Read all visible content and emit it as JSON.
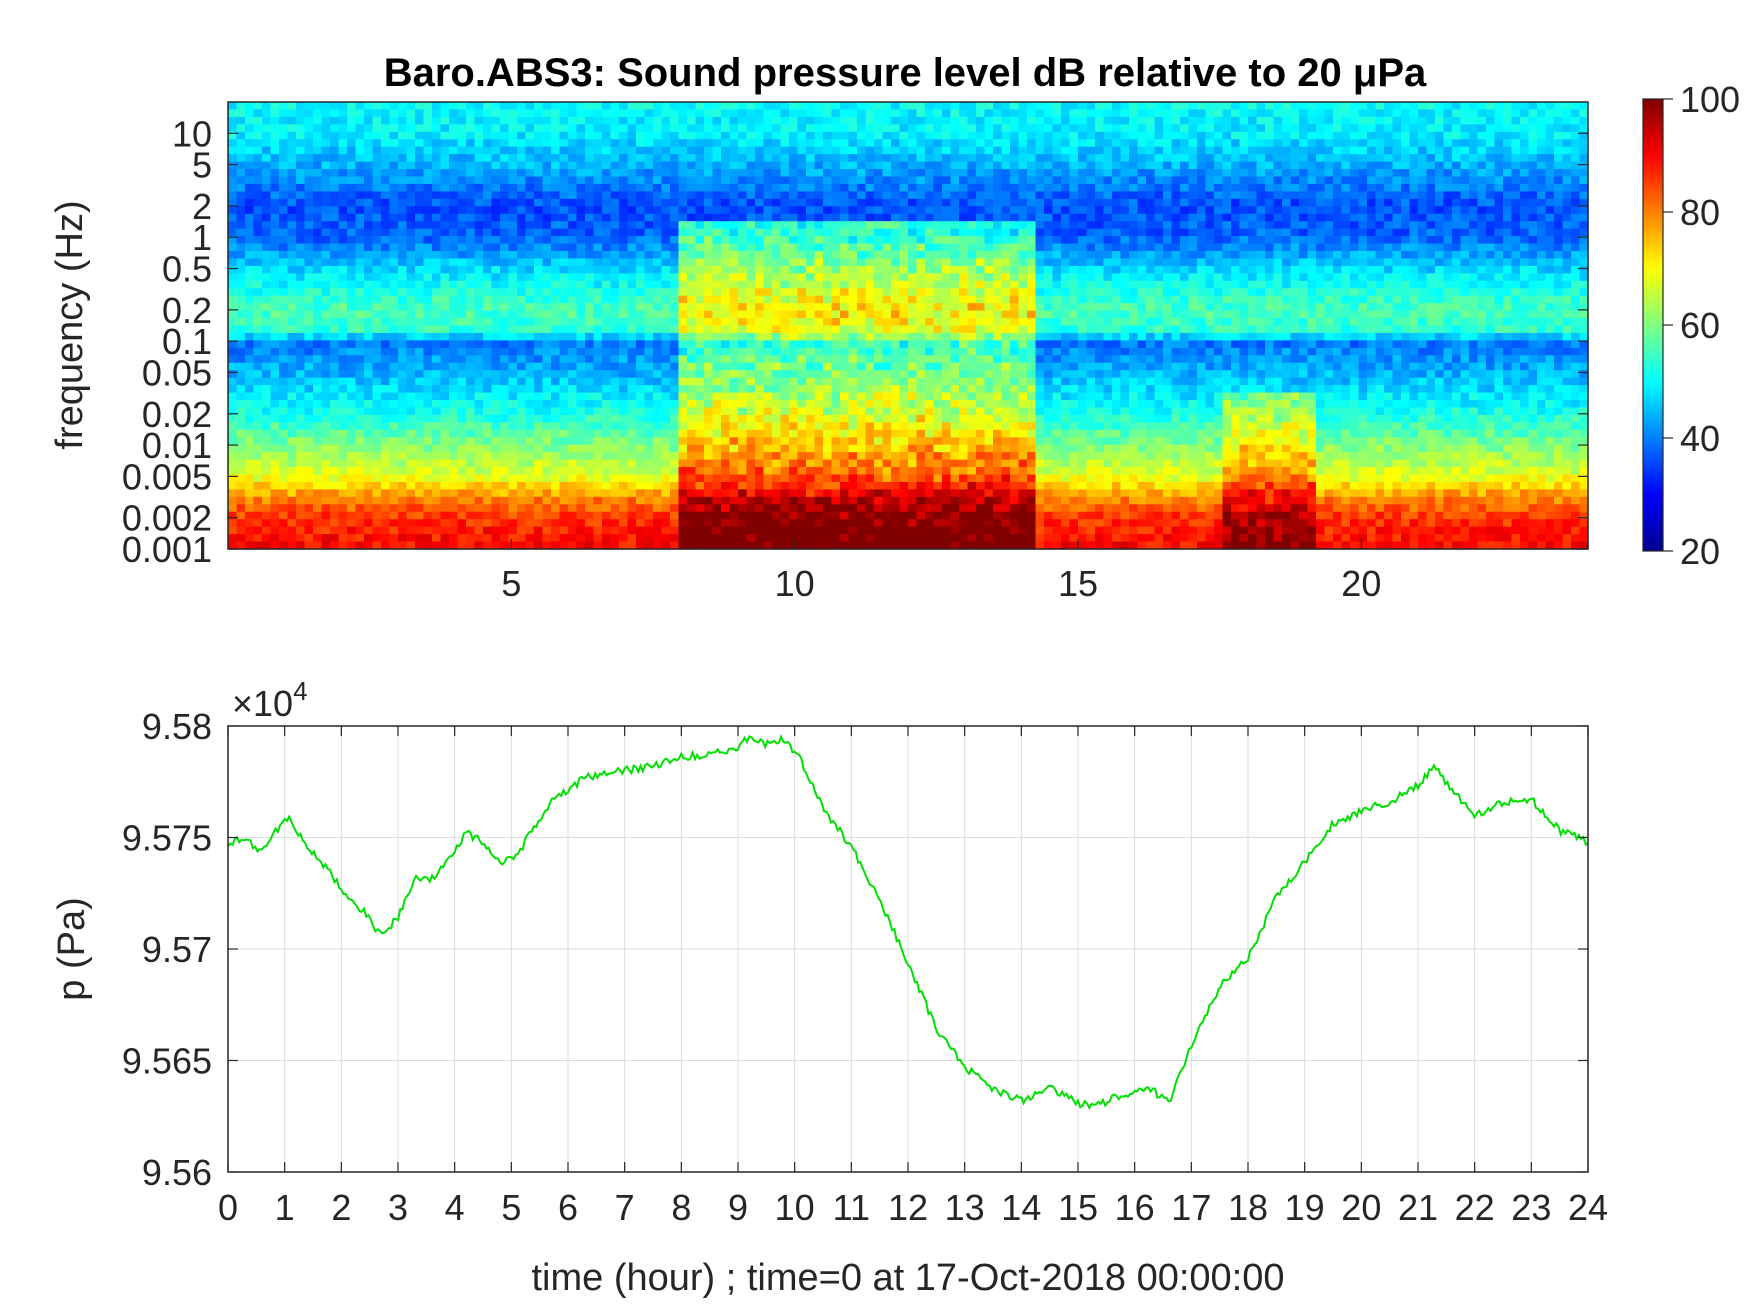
{
  "chart_data": [
    {
      "type": "heatmap",
      "title": "Baro.ABS3: Sound pressure level dB relative to 20 μPa",
      "xlabel": "",
      "ylabel": "frequency (Hz)",
      "y_scale": "log",
      "xlim": [
        0,
        24
      ],
      "ylim": [
        0.001,
        20
      ],
      "x_tick_labels": [
        "5",
        "10",
        "15",
        "20"
      ],
      "x_ticks": [
        5,
        10,
        15,
        20
      ],
      "y_tick_labels": [
        "10",
        "5",
        "2",
        "1",
        "0.5",
        "0.2",
        "0.1",
        "0.05",
        "0.02",
        "0.01",
        "0.005",
        "0.002",
        "0.001"
      ],
      "y_ticks": [
        10,
        5,
        2,
        1,
        0.5,
        0.2,
        0.1,
        0.05,
        0.02,
        0.01,
        0.005,
        0.002,
        0.001
      ],
      "colorbar": {
        "colormap": "jet",
        "range": [
          20,
          100
        ],
        "tick_labels": [
          "100",
          "80",
          "60",
          "40",
          "20"
        ],
        "ticks": [
          100,
          80,
          60,
          40,
          20
        ]
      },
      "level_profile_by_frequency": [
        {
          "f": 20,
          "db": 50
        },
        {
          "f": 10,
          "db": 49
        },
        {
          "f": 5,
          "db": 44
        },
        {
          "f": 2,
          "db": 36
        },
        {
          "f": 1,
          "db": 38
        },
        {
          "f": 0.5,
          "db": 47
        },
        {
          "f": 0.2,
          "db": 56
        },
        {
          "f": 0.12,
          "db": 53
        },
        {
          "f": 0.1,
          "db": 39
        },
        {
          "f": 0.05,
          "db": 44
        },
        {
          "f": 0.02,
          "db": 52
        },
        {
          "f": 0.01,
          "db": 60
        },
        {
          "f": 0.005,
          "db": 68
        },
        {
          "f": 0.003,
          "db": 80
        },
        {
          "f": 0.002,
          "db": 86
        },
        {
          "f": 0.001,
          "db": 90
        }
      ],
      "active_periods": [
        {
          "start": 8.0,
          "end": 14.2,
          "extra_db": 20,
          "fmax": 1.5
        },
        {
          "start": 17.5,
          "end": 19.2,
          "extra_db": 14,
          "fmax": 0.03
        }
      ]
    },
    {
      "type": "line",
      "title": "",
      "xlabel": "time (hour) ; time=0 at 17-Oct-2018 00:00:00",
      "ylabel": "p (Pa)",
      "y_multiplier_label": "×10",
      "y_multiplier_exponent": "4",
      "xlim": [
        0,
        24
      ],
      "ylim": [
        9.56,
        9.58
      ],
      "x_tick_labels": [
        "0",
        "1",
        "2",
        "3",
        "4",
        "5",
        "6",
        "7",
        "8",
        "9",
        "10",
        "11",
        "12",
        "13",
        "14",
        "15",
        "16",
        "17",
        "18",
        "19",
        "20",
        "21",
        "22",
        "23",
        "24"
      ],
      "y_tick_labels": [
        "9.58",
        "9.575",
        "9.57",
        "9.565",
        "9.56"
      ],
      "y_ticks": [
        9.58,
        9.575,
        9.57,
        9.565,
        9.56
      ],
      "grid": true,
      "line_color": "#00e000",
      "x": [
        0,
        0.3,
        0.6,
        0.9,
        1.1,
        1.3,
        1.6,
        1.9,
        2.2,
        2.4,
        2.7,
        3.0,
        3.3,
        3.6,
        3.9,
        4.2,
        4.5,
        4.8,
        5.1,
        5.4,
        5.7,
        6.0,
        6.3,
        6.6,
        7.0,
        7.5,
        8.0,
        8.5,
        9.0,
        9.2,
        9.5,
        9.8,
        10.1,
        10.5,
        11.0,
        11.5,
        12.0,
        12.5,
        13.0,
        13.5,
        14.0,
        14.5,
        15.0,
        15.3,
        15.6,
        16.0,
        16.3,
        16.6,
        17.0,
        17.5,
        18.0,
        18.5,
        19.0,
        19.5,
        20.0,
        20.5,
        21.0,
        21.3,
        21.6,
        22.0,
        22.5,
        23.0,
        23.5,
        24.0
      ],
      "y": [
        9.5747,
        9.575,
        9.5743,
        9.5755,
        9.5759,
        9.5749,
        9.5741,
        9.5731,
        9.5721,
        9.5717,
        9.5706,
        9.5714,
        9.5731,
        9.5732,
        9.574,
        9.5752,
        9.5748,
        9.5739,
        9.5742,
        9.5755,
        9.5766,
        9.5771,
        9.5777,
        9.5778,
        9.578,
        9.5782,
        9.5786,
        9.5787,
        9.5791,
        9.5795,
        9.5792,
        9.5794,
        9.5785,
        9.5763,
        9.5746,
        9.5722,
        9.5694,
        9.5664,
        9.5647,
        9.5637,
        9.5632,
        9.5638,
        9.5631,
        9.5629,
        9.5633,
        9.5636,
        9.5637,
        9.5631,
        9.5656,
        9.5683,
        9.5696,
        9.5723,
        9.5739,
        9.5756,
        9.5762,
        9.5766,
        9.5773,
        9.5782,
        9.5771,
        9.576,
        9.5766,
        9.5767,
        9.5753,
        9.5748
      ]
    }
  ]
}
